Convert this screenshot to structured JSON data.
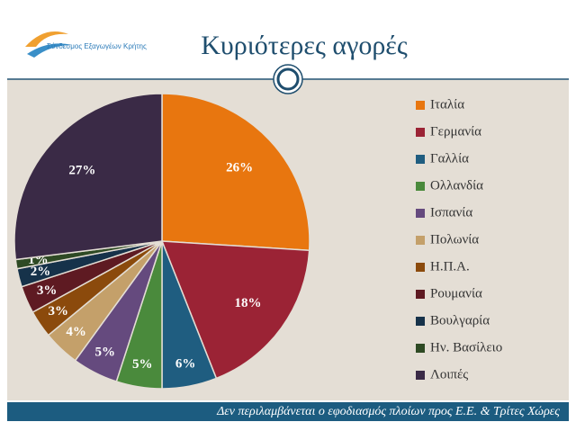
{
  "logo": "Σύνδεσμος Εξαγωγέων Κρήτης",
  "chart_data": {
    "type": "pie",
    "title": "Κυριότερες αγορές",
    "categories": [
      "Ιταλία",
      "Γερμανία",
      "Γαλλία",
      "Ολλανδία",
      "Ισπανία",
      "Πολωνία",
      "Η.Π.Α.",
      "Ρουμανία",
      "Βουλγαρία",
      "Ην. Βασίλειο",
      "Λοιπές"
    ],
    "values": [
      26,
      18,
      6,
      5,
      5,
      4,
      3,
      3,
      2,
      1,
      27
    ],
    "value_labels": [
      "26%",
      "18%",
      "6%",
      "5%",
      "5%",
      "4%",
      "3%",
      "3%",
      "2%",
      "1%",
      "27%"
    ],
    "colors": [
      "#e8760f",
      "#9b2335",
      "#1f5d80",
      "#4a8a3c",
      "#654a7e",
      "#c4a06a",
      "#8b4a0c",
      "#5e1a22",
      "#16324a",
      "#2e4a24",
      "#3a2a46"
    ],
    "legend": "right",
    "note": "Δεν περιλαμβάνεται ο εφοδιασμός πλοίων προς Ε.Ε. & Τρίτες Χώρες"
  }
}
